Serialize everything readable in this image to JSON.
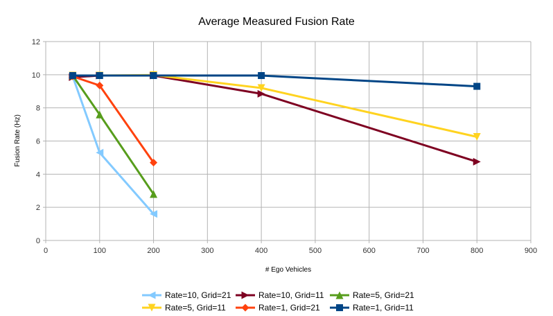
{
  "chart_data": {
    "type": "line",
    "title": "Average Measured Fusion Rate",
    "xlabel": "# Ego Vehicles",
    "ylabel": "Fusion Rate (Hz)",
    "xlim": [
      0,
      900
    ],
    "ylim": [
      0,
      12
    ],
    "xticks": [
      0,
      100,
      200,
      300,
      400,
      500,
      600,
      700,
      800,
      900
    ],
    "yticks": [
      0,
      2,
      4,
      6,
      8,
      10,
      12
    ],
    "grid": true,
    "legend_position": "bottom",
    "series": [
      {
        "name": "Rate=10, Grid=21",
        "color": "#83caff",
        "marker": "triangle-left",
        "x": [
          50,
          100,
          200
        ],
        "y": [
          9.9,
          5.3,
          1.6
        ]
      },
      {
        "name": "Rate=10, Grid=11",
        "color": "#7e0021",
        "marker": "triangle-right",
        "x": [
          50,
          100,
          200,
          400,
          800
        ],
        "y": [
          9.85,
          9.95,
          9.95,
          8.85,
          4.75
        ]
      },
      {
        "name": "Rate=5, Grid=21",
        "color": "#579d1c",
        "marker": "triangle-up",
        "x": [
          50,
          100,
          200
        ],
        "y": [
          9.95,
          7.6,
          2.8
        ]
      },
      {
        "name": "Rate=5, Grid=11",
        "color": "#ffd320",
        "marker": "triangle-down",
        "x": [
          50,
          100,
          200,
          400,
          800
        ],
        "y": [
          9.95,
          9.95,
          9.98,
          9.2,
          6.25
        ]
      },
      {
        "name": "Rate=1, Grid=21",
        "color": "#ff420e",
        "marker": "diamond",
        "x": [
          50,
          100,
          200
        ],
        "y": [
          9.9,
          9.35,
          4.7
        ]
      },
      {
        "name": "Rate=1, Grid=11",
        "color": "#004586",
        "marker": "square",
        "x": [
          50,
          100,
          200,
          400,
          800
        ],
        "y": [
          9.95,
          9.95,
          9.95,
          9.95,
          9.3
        ]
      }
    ]
  }
}
